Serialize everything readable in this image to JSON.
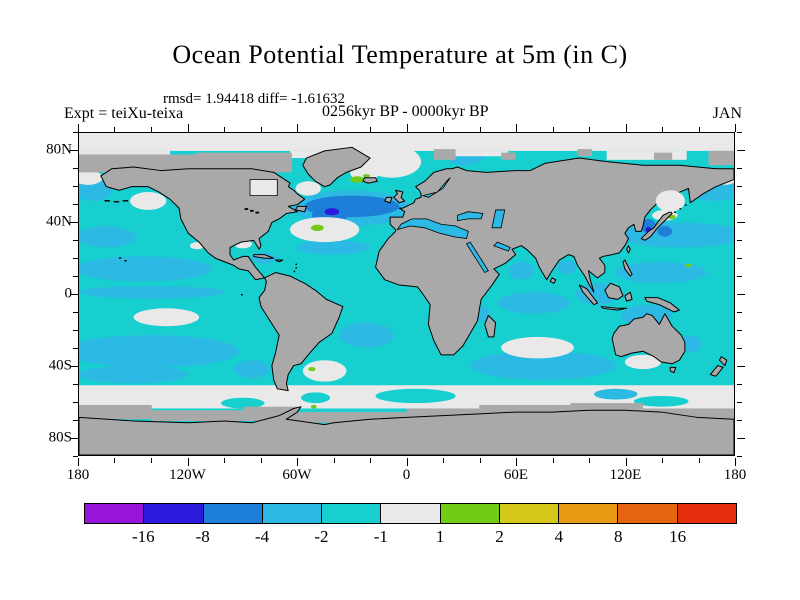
{
  "header": {
    "title": "Ocean Potential Temperature at 5m (in C)",
    "stats_line": "rmsd= 1.94418 diff= -1.61632",
    "period_line": "0256kyr BP - 0000kyr BP",
    "experiment_label": "Expt = teiXu-teixa",
    "month_label": "JAN"
  },
  "chart_data": {
    "type": "heatmap",
    "title": "Ocean Potential Temperature at 5m (in C)",
    "rmsd": 1.94418,
    "diff": -1.61632,
    "experiment": "teiXu-teixa",
    "period": "0256kyr BP - 0000kyr BP",
    "month": "JAN",
    "projection": "equirectangular world map",
    "x_axis": {
      "ticks": [
        "180",
        "120W",
        "60W",
        "0",
        "60E",
        "120E",
        "180"
      ],
      "range_deg": [
        -180,
        180
      ],
      "minor_tick_deg": 20
    },
    "y_axis": {
      "ticks": [
        "80N",
        "40N",
        "0",
        "40S",
        "80S"
      ],
      "range_deg": [
        -90,
        90
      ],
      "minor_tick_deg": 10
    },
    "colorbar": {
      "units": "C",
      "boundary_labels": [
        "-16",
        "-8",
        "-4",
        "-2",
        "-1",
        "1",
        "2",
        "4",
        "8",
        "16"
      ],
      "colors": [
        "#9914D9",
        "#2A1BDC",
        "#1E7FD9",
        "#2CB9E3",
        "#17CFCF",
        "#E9E9E9",
        "#72CC15",
        "#D6C818",
        "#E89A14",
        "#E8650F",
        "#E52E0B"
      ]
    },
    "map_colors": {
      "land": "#A9A9A9",
      "coastline": "#000000",
      "ice_or_nodata": "#E9E9E9",
      "dominant_ocean": "#17CFCF"
    }
  }
}
